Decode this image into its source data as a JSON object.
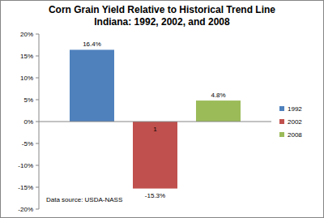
{
  "chart_data": {
    "type": "bar",
    "title": "Corn Grain Yield Relative to Historical Trend Line",
    "subtitle": "Indiana: 1992, 2002, and 2008",
    "source": "Data source: USDA-NASS",
    "annotation": "1",
    "categories": [
      null
    ],
    "series": [
      {
        "name": "1992",
        "color": "#4f81bd",
        "values": [
          16.4
        ],
        "value_labels": [
          "16.4%"
        ]
      },
      {
        "name": "2002",
        "color": "#c0504d",
        "values": [
          -15.3
        ],
        "value_labels": [
          "-15.3%"
        ]
      },
      {
        "name": "2008",
        "color": "#9bbb59",
        "values": [
          4.8
        ],
        "value_labels": [
          "4.8%"
        ]
      }
    ],
    "ylim": [
      -20,
      20
    ],
    "yticks": [
      {
        "value": -20,
        "label": "-20%"
      },
      {
        "value": -15,
        "label": "-15%"
      },
      {
        "value": -10,
        "label": "-10%"
      },
      {
        "value": -5,
        "label": "-5%"
      },
      {
        "value": 0,
        "label": "0%"
      },
      {
        "value": 5,
        "label": "5%"
      },
      {
        "value": 10,
        "label": "10%"
      },
      {
        "value": 15,
        "label": "15%"
      },
      {
        "value": 20,
        "label": "20%"
      }
    ],
    "grid": false,
    "legend": "right",
    "data_labels": true
  }
}
